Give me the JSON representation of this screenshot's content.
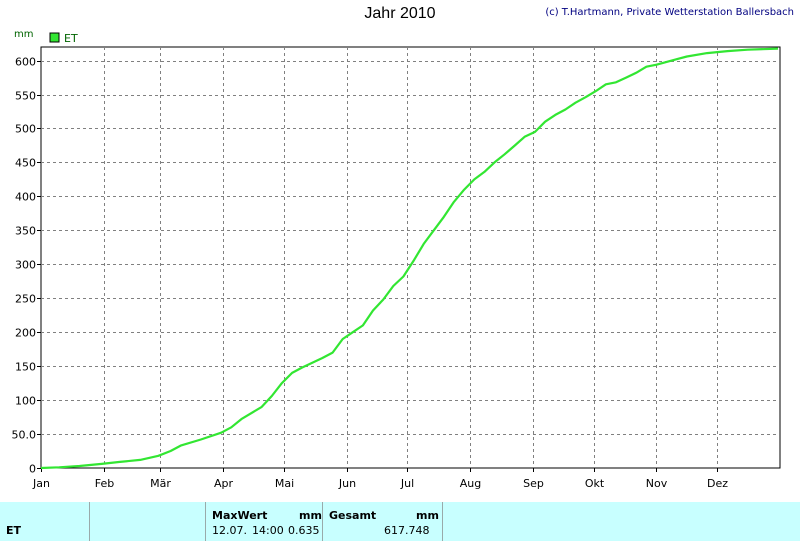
{
  "header": {
    "title": "Jahr 2010",
    "copyright": "(c) T.Hartmann, Private Wetterstation Ballersbach"
  },
  "colors": {
    "line": "#32e632",
    "grid": "#808080",
    "footer_bg": "#c8ffff",
    "copyright": "#000080"
  },
  "chart_data": {
    "type": "line",
    "title": "Jahr 2010",
    "ylabel": "mm",
    "ylim": [
      0,
      620
    ],
    "grid": true,
    "legend": "top-left",
    "yticks": [
      0,
      50,
      100,
      150,
      200,
      250,
      300,
      350,
      400,
      450,
      500,
      550,
      600
    ],
    "ytick_labels": [
      "0",
      "50.0",
      "100",
      "150",
      "200",
      "250",
      "300",
      "350",
      "400",
      "450",
      "500",
      "550",
      "600"
    ],
    "xticks": [
      "Jan",
      "Feb",
      "Mär",
      "Apr",
      "Mai",
      "Jun",
      "Jul",
      "Aug",
      "Sep",
      "Okt",
      "Nov",
      "Dez"
    ],
    "x_unit": "day of year",
    "series": [
      {
        "name": "ET",
        "color": "#32e632",
        "x": [
          1,
          10,
          20,
          31,
          40,
          50,
          59,
          65,
          70,
          80,
          90,
          95,
          100,
          110,
          115,
          120,
          125,
          130,
          135,
          140,
          145,
          150,
          155,
          160,
          165,
          170,
          175,
          180,
          185,
          190,
          195,
          200,
          205,
          210,
          215,
          220,
          225,
          230,
          235,
          240,
          245,
          250,
          255,
          260,
          265,
          270,
          275,
          280,
          285,
          290,
          295,
          300,
          305,
          310,
          315,
          320,
          330,
          340,
          350,
          365
        ],
        "y": [
          0,
          1,
          3,
          6,
          9,
          12,
          18,
          25,
          33,
          42,
          52,
          60,
          72,
          90,
          106,
          125,
          140,
          148,
          155,
          162,
          170,
          190,
          200,
          210,
          232,
          248,
          268,
          282,
          305,
          330,
          350,
          370,
          392,
          410,
          425,
          436,
          450,
          462,
          475,
          488,
          495,
          510,
          520,
          528,
          538,
          546,
          555,
          565,
          568,
          575,
          582,
          591,
          594,
          598,
          602,
          606,
          611,
          614,
          616,
          617.7
        ]
      }
    ]
  },
  "footer": {
    "series_label": "ET",
    "max_label": "MaxWert",
    "max_unit": "mm",
    "max_date": "12.07.",
    "max_time": "14:00",
    "max_value": "0.635",
    "total_label": "Gesamt",
    "total_unit": "mm",
    "total_value": "617.748"
  }
}
